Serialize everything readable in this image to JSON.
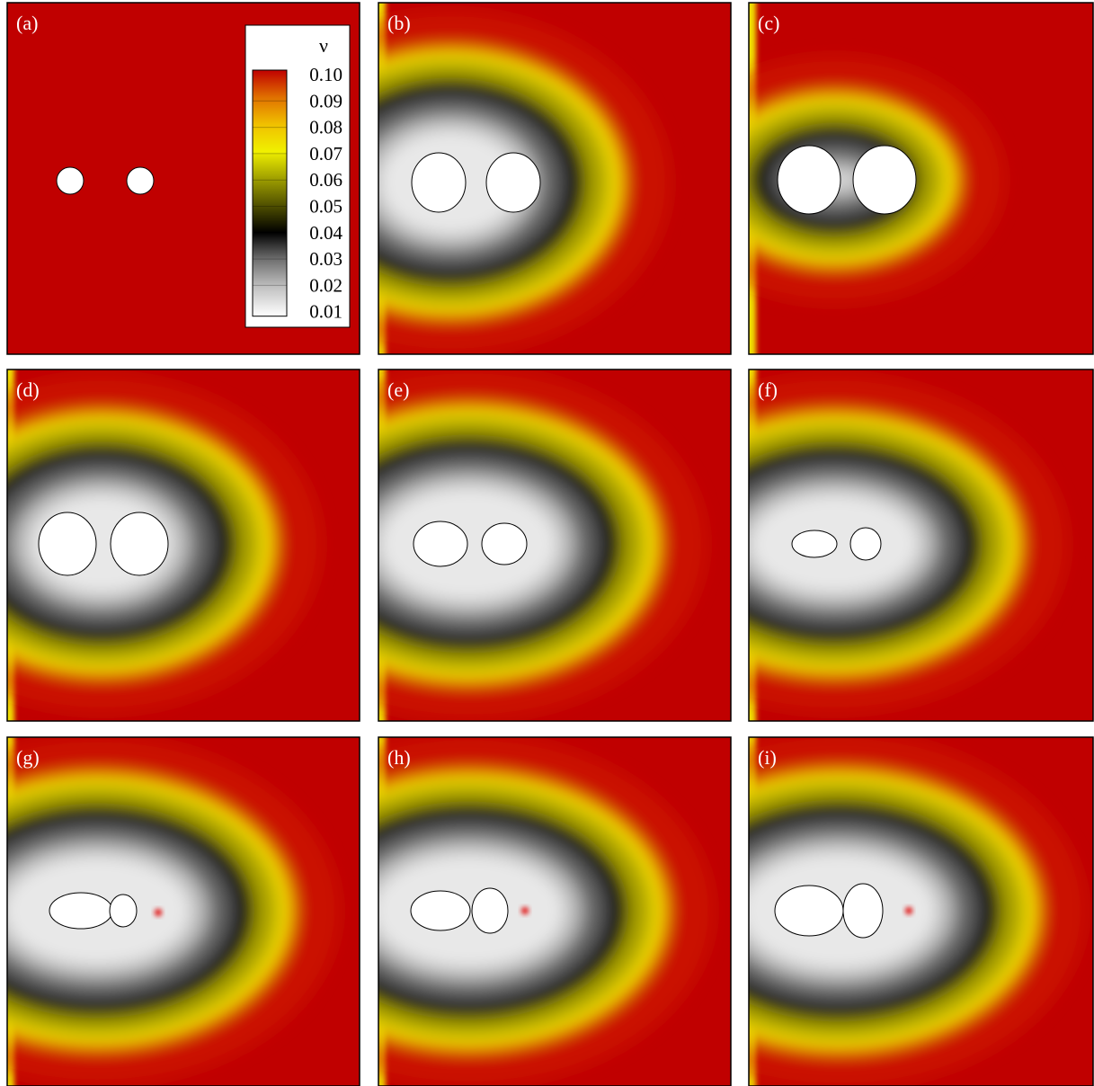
{
  "panels": [
    {
      "label": "(a)"
    },
    {
      "label": "(b)"
    },
    {
      "label": "(c)"
    },
    {
      "label": "(d)"
    },
    {
      "label": "(e)"
    },
    {
      "label": "(f)"
    },
    {
      "label": "(g)"
    },
    {
      "label": "(h)"
    },
    {
      "label": "(i)"
    }
  ],
  "colorbar": {
    "title": "ν",
    "ticks": [
      "0.10",
      "0.09",
      "0.08",
      "0.07",
      "0.06",
      "0.05",
      "0.04",
      "0.03",
      "0.02",
      "0.01"
    ]
  }
}
